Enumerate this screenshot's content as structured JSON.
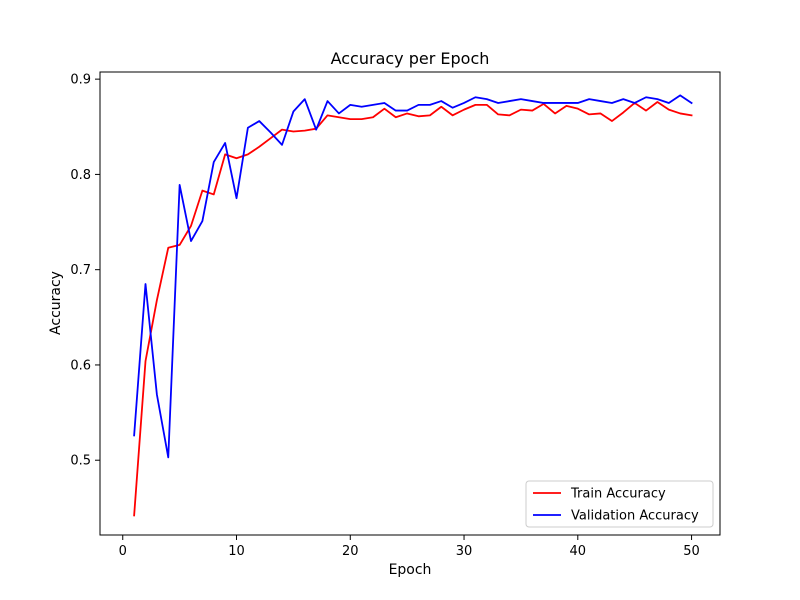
{
  "chart_data": {
    "type": "line",
    "title": "Accuracy per Epoch",
    "xlabel": "Epoch",
    "ylabel": "Accuracy",
    "xlim": [
      -2,
      52.5
    ],
    "ylim": [
      0.4215,
      0.9075
    ],
    "xticks": [
      0,
      10,
      20,
      30,
      40,
      50
    ],
    "yticks": [
      0.5,
      0.6,
      0.7,
      0.8,
      0.9
    ],
    "ytick_labels": [
      "0.5",
      "0.6",
      "0.7",
      "0.8",
      "0.9"
    ],
    "grid": false,
    "legend_position": "lower-right",
    "x": [
      1,
      2,
      3,
      4,
      5,
      6,
      7,
      8,
      9,
      10,
      11,
      12,
      13,
      14,
      15,
      16,
      17,
      18,
      19,
      20,
      21,
      22,
      23,
      24,
      25,
      26,
      27,
      28,
      29,
      30,
      31,
      32,
      33,
      34,
      35,
      36,
      37,
      38,
      39,
      40,
      41,
      42,
      43,
      44,
      45,
      46,
      47,
      48,
      49,
      50
    ],
    "series": [
      {
        "name": "Train Accuracy",
        "color": "#ff0000",
        "values": [
          0.442,
          0.604,
          0.668,
          0.723,
          0.726,
          0.746,
          0.783,
          0.779,
          0.821,
          0.817,
          0.821,
          0.829,
          0.838,
          0.847,
          0.845,
          0.846,
          0.848,
          0.862,
          0.86,
          0.858,
          0.858,
          0.86,
          0.869,
          0.86,
          0.864,
          0.861,
          0.862,
          0.871,
          0.862,
          0.868,
          0.873,
          0.873,
          0.863,
          0.862,
          0.868,
          0.867,
          0.874,
          0.864,
          0.872,
          0.869,
          0.863,
          0.864,
          0.856,
          0.865,
          0.875,
          0.867,
          0.876,
          0.868,
          0.864,
          0.862
        ]
      },
      {
        "name": "Validation Accuracy",
        "color": "#0000ff",
        "values": [
          0.526,
          0.685,
          0.569,
          0.503,
          0.789,
          0.73,
          0.751,
          0.813,
          0.833,
          0.775,
          0.849,
          0.856,
          0.844,
          0.831,
          0.866,
          0.879,
          0.847,
          0.877,
          0.864,
          0.873,
          0.871,
          0.873,
          0.875,
          0.867,
          0.867,
          0.873,
          0.873,
          0.877,
          0.87,
          0.875,
          0.881,
          0.879,
          0.875,
          0.877,
          0.879,
          0.877,
          0.875,
          0.875,
          0.875,
          0.875,
          0.879,
          0.877,
          0.875,
          0.879,
          0.875,
          0.881,
          0.879,
          0.875,
          0.883,
          0.875
        ]
      }
    ]
  }
}
